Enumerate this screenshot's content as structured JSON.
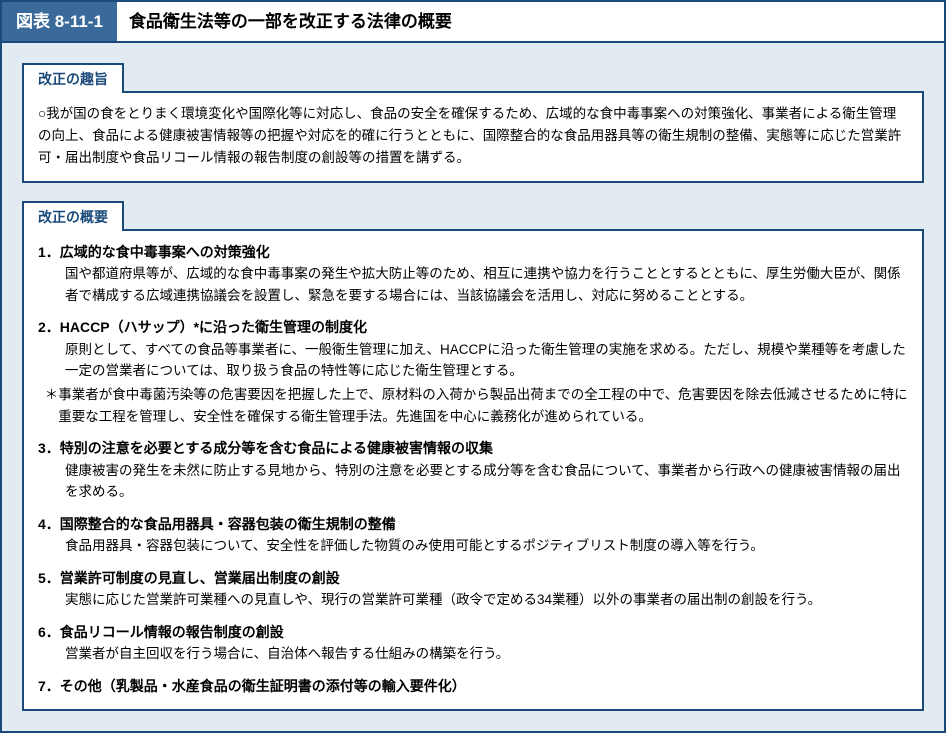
{
  "figure": {
    "badge": "図表 8-11-1",
    "title": "食品衛生法等の一部を改正する法律の概要"
  },
  "purpose": {
    "heading": "改正の趣旨",
    "text": "○我が国の食をとりまく環境変化や国際化等に対応し、食品の安全を確保するため、広域的な食中毒事案への対策強化、事業者による衛生管理の向上、食品による健康被害情報等の把握や対応を的確に行うとともに、国際整合的な食品用器具等の衛生規制の整備、実態等に応じた営業許可・届出制度や食品リコール情報の報告制度の創設等の措置を講ずる。"
  },
  "overview": {
    "heading": "改正の概要",
    "items": [
      {
        "head": "1．広域的な食中毒事案への対策強化",
        "body": "国や都道府県等が、広域的な食中毒事案の発生や拡大防止等のため、相互に連携や協力を行うこととするとともに、厚生労働大臣が、関係者で構成する広域連携協議会を設置し、緊急を要する場合には、当該協議会を活用し、対応に努めることとする。",
        "note": ""
      },
      {
        "head": "2．HACCP（ハサップ）*に沿った衛生管理の制度化",
        "body": "原則として、すべての食品等事業者に、一般衛生管理に加え、HACCPに沿った衛生管理の実施を求める。ただし、規模や業種等を考慮した一定の営業者については、取り扱う食品の特性等に応じた衛生管理とする。",
        "note": "＊事業者が食中毒菌汚染等の危害要因を把握した上で、原材料の入荷から製品出荷までの全工程の中で、危害要因を除去低減させるために特に重要な工程を管理し、安全性を確保する衛生管理手法。先進国を中心に義務化が進められている。"
      },
      {
        "head": "3．特別の注意を必要とする成分等を含む食品による健康被害情報の収集",
        "body": "健康被害の発生を未然に防止する見地から、特別の注意を必要とする成分等を含む食品について、事業者から行政への健康被害情報の届出を求める。",
        "note": ""
      },
      {
        "head": "4．国際整合的な食品用器具・容器包装の衛生規制の整備",
        "body": "食品用器具・容器包装について、安全性を評価した物質のみ使用可能とするポジティブリスト制度の導入等を行う。",
        "note": ""
      },
      {
        "head": "5．営業許可制度の見直し、営業届出制度の創設",
        "body": "実態に応じた営業許可業種への見直しや、現行の営業許可業種（政令で定める34業種）以外の事業者の届出制の創設を行う。",
        "note": ""
      },
      {
        "head": "6．食品リコール情報の報告制度の創設",
        "body": "営業者が自主回収を行う場合に、自治体へ報告する仕組みの構築を行う。",
        "note": ""
      },
      {
        "head": "7．その他（乳製品・水産食品の衛生証明書の添付等の輸入要件化）",
        "body": "",
        "note": ""
      }
    ]
  },
  "colors": {
    "frame_border": "#1a4a7a",
    "badge_bg": "#3a6a9a",
    "body_bg": "#e2ebf2",
    "white": "#ffffff",
    "text": "#000000"
  }
}
